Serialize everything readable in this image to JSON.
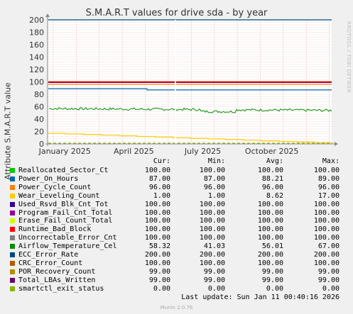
{
  "chart_data": {
    "type": "line",
    "title": "S.M.A.R.T values for drive sda - by year",
    "ylabel": "Attribute S.M.A.R.T value",
    "ylim": [
      0,
      200
    ],
    "yticks": [
      0,
      20,
      40,
      60,
      80,
      100,
      120,
      140,
      160,
      180,
      200
    ],
    "xticks": [
      "January 2025",
      "April 2025",
      "July 2025",
      "October 2025"
    ],
    "grid": true,
    "legend_headers": {
      "cur": "Cur:",
      "min": "Min:",
      "avg": "Avg:",
      "max": "Max:"
    },
    "series": [
      {
        "name": "Reallocated_Sector_Ct",
        "color": "#00cc00",
        "cur": "100.00",
        "min": "100.00",
        "avg": "100.00",
        "max": "100.00",
        "level": 100
      },
      {
        "name": "Power_On_Hours",
        "color": "#0066b3",
        "cur": "87.00",
        "min": "87.00",
        "avg": "88.21",
        "max": "89.00",
        "level": 88
      },
      {
        "name": "Power_Cycle_Count",
        "color": "#ff8000",
        "cur": "96.00",
        "min": "96.00",
        "avg": "96.00",
        "max": "96.00",
        "level": 96
      },
      {
        "name": "Wear_Leveling_Count",
        "color": "#ffcc00",
        "cur": "1.00",
        "min": "1.00",
        "avg": "8.62",
        "max": "17.00",
        "level": 8.6
      },
      {
        "name": "Used_Rsvd_Blk_Cnt_Tot",
        "color": "#330099",
        "cur": "100.00",
        "min": "100.00",
        "avg": "100.00",
        "max": "100.00",
        "level": 100
      },
      {
        "name": "Program_Fail_Cnt_Total",
        "color": "#990099",
        "cur": "100.00",
        "min": "100.00",
        "avg": "100.00",
        "max": "100.00",
        "level": 100
      },
      {
        "name": "Erase_Fail_Count_Total",
        "color": "#ccff00",
        "cur": "100.00",
        "min": "100.00",
        "avg": "100.00",
        "max": "100.00",
        "level": 100
      },
      {
        "name": "Runtime_Bad_Block",
        "color": "#ff0000",
        "cur": "100.00",
        "min": "100.00",
        "avg": "100.00",
        "max": "100.00",
        "level": 100
      },
      {
        "name": "Uncorrectable_Error_Cnt",
        "color": "#808080",
        "cur": "100.00",
        "min": "100.00",
        "avg": "100.00",
        "max": "100.00",
        "level": 100
      },
      {
        "name": "Airflow_Temperature_Cel",
        "color": "#008f00",
        "cur": "58.32",
        "min": "41.03",
        "avg": "56.01",
        "max": "67.00",
        "level": 56
      },
      {
        "name": "ECC_Error_Rate",
        "color": "#00487d",
        "cur": "200.00",
        "min": "200.00",
        "avg": "200.00",
        "max": "200.00",
        "level": 200
      },
      {
        "name": "CRC_Error_Count",
        "color": "#b35a00",
        "cur": "100.00",
        "min": "100.00",
        "avg": "100.00",
        "max": "100.00",
        "level": 100
      },
      {
        "name": "POR_Recovery_Count",
        "color": "#b38f00",
        "cur": "99.00",
        "min": "99.00",
        "avg": "99.00",
        "max": "99.00",
        "level": 99
      },
      {
        "name": "Total_LBAs_Written",
        "color": "#6b006b",
        "cur": "99.00",
        "min": "99.00",
        "avg": "99.00",
        "max": "99.00",
        "level": 99
      },
      {
        "name": "smartctl_exit_status",
        "color": "#8fb300",
        "cur": "0.00",
        "min": "0.00",
        "avg": "0.00",
        "max": "0.00",
        "level": 0
      }
    ],
    "last_update": "Last update: Sun Jan 11 00:40:16 2026"
  },
  "side_text": "RRDTOOL / TOBI OETIKER",
  "footer": "Munin 2.0.76"
}
